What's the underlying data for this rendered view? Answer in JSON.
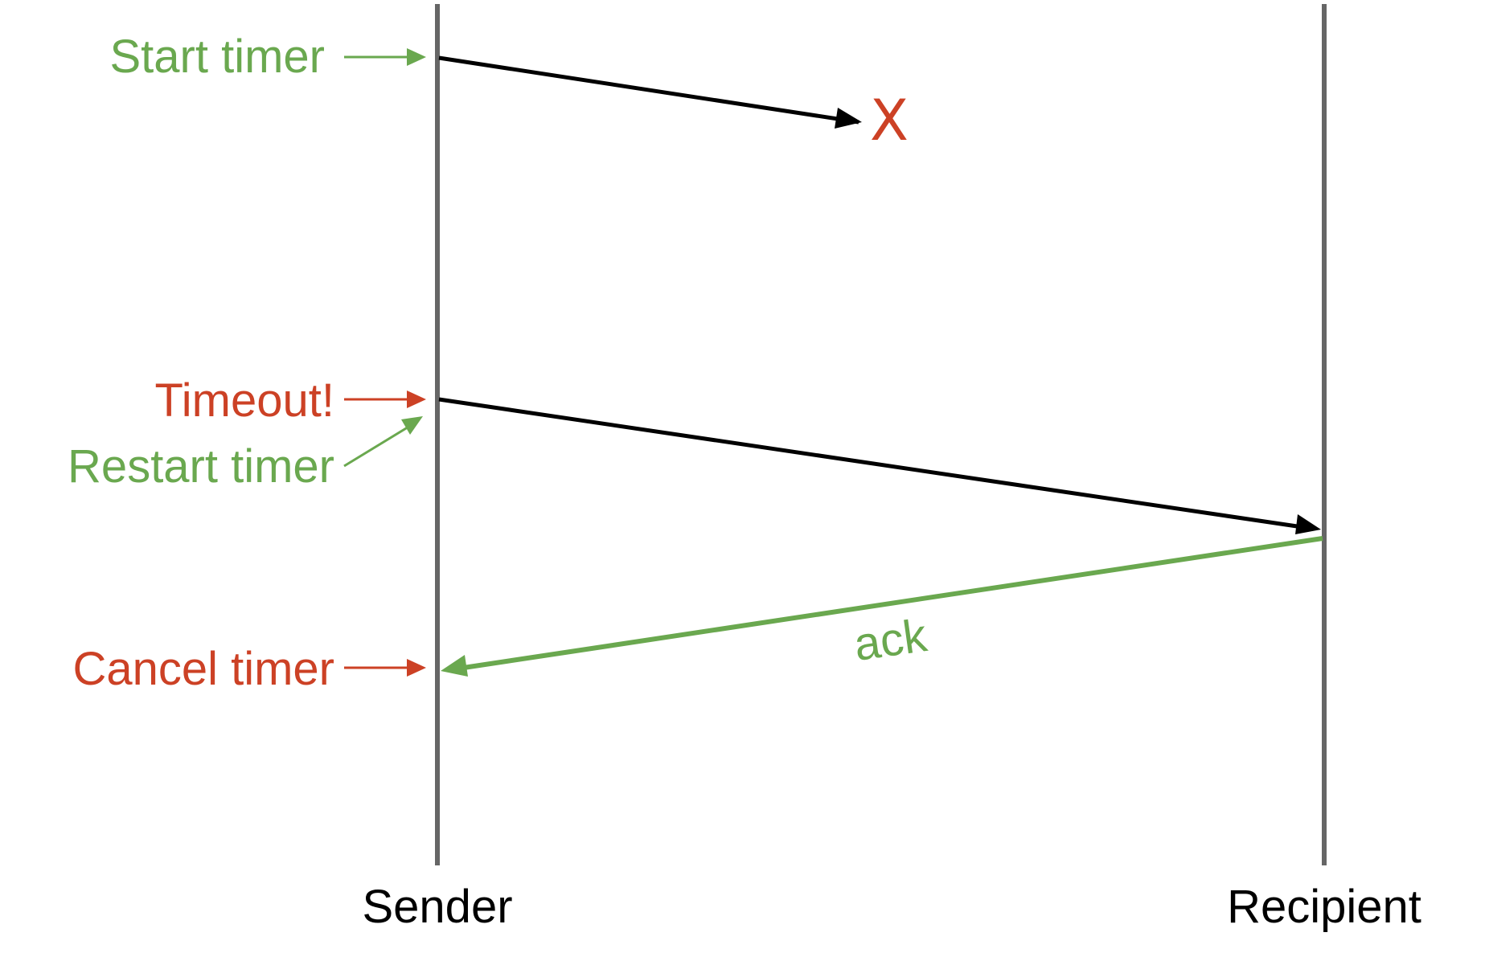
{
  "diagram": {
    "lifelines": {
      "sender": "Sender",
      "recipient": "Recipient"
    },
    "events": {
      "start_timer": "Start timer",
      "timeout": "Timeout!",
      "restart_timer": "Restart timer",
      "cancel_timer": "Cancel timer"
    },
    "messages": {
      "lost_marker": "X",
      "ack": "ack"
    }
  },
  "colors": {
    "lifeline": "#666666",
    "message": "#000000",
    "green": "#6aa84f",
    "red": "#cc4125"
  }
}
